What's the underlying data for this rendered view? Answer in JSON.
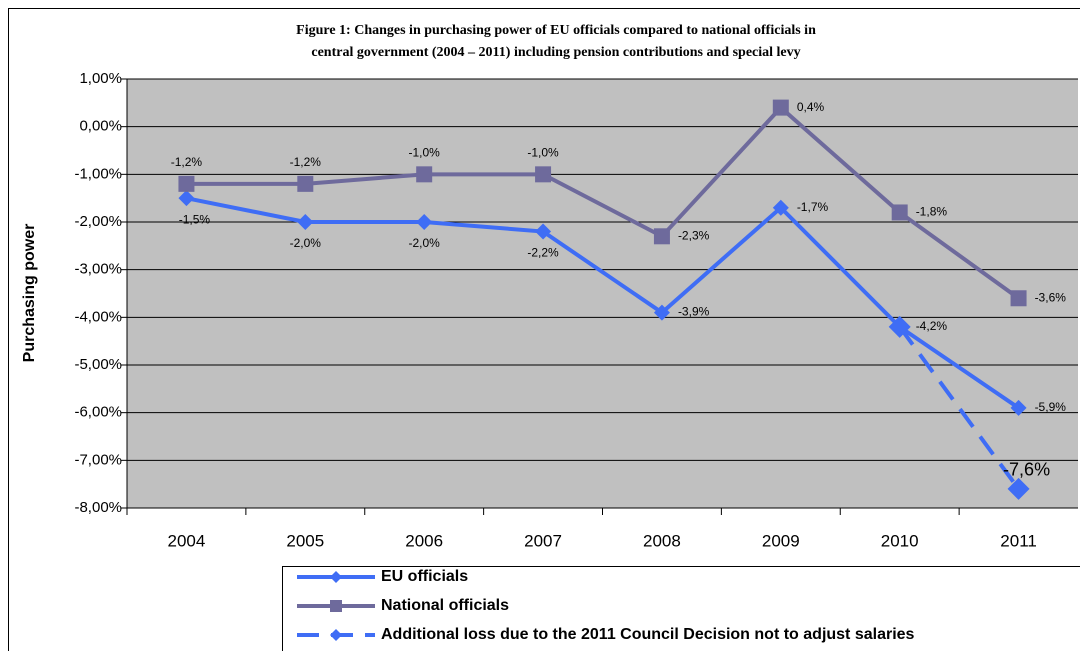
{
  "chart_data": {
    "type": "line",
    "title": [
      "Figure 1: Changes in purchasing power of EU officials compared to national officials in",
      "central government (2004 – 2011) including pension contributions and special levy"
    ],
    "y_label": "Purchasing power",
    "categories": [
      "2004",
      "2005",
      "2006",
      "2007",
      "2008",
      "2009",
      "2010",
      "2011"
    ],
    "ylim": [
      -8,
      1
    ],
    "yticks": [
      {
        "value": 1,
        "label": "1,00%"
      },
      {
        "value": 0,
        "label": "0,00%"
      },
      {
        "value": -1,
        "label": "-1,00%"
      },
      {
        "value": -2,
        "label": "-2,00%"
      },
      {
        "value": -3,
        "label": "-3,00%"
      },
      {
        "value": -4,
        "label": "-4,00%"
      },
      {
        "value": -5,
        "label": "-5,00%"
      },
      {
        "value": -6,
        "label": "-6,00%"
      },
      {
        "value": -7,
        "label": "-7,00%"
      },
      {
        "value": -8,
        "label": "-8,00%"
      }
    ],
    "grid": true,
    "series": [
      {
        "name": "EU officials",
        "color": "#3f6df5",
        "marker": "diamond",
        "values": [
          -1.5,
          -2.0,
          -2.0,
          -2.2,
          -3.9,
          -1.7,
          -4.2,
          -5.9
        ],
        "value_labels": [
          "-1,5%",
          "-2,0%",
          "-2,0%",
          "-2,2%",
          "-3,9%",
          "-1,7%",
          "-4,2%",
          "-5,9%"
        ]
      },
      {
        "name": "National officials",
        "color": "#6e6a9c",
        "marker": "square",
        "values": [
          -1.2,
          -1.2,
          -1.0,
          -1.0,
          -2.3,
          0.4,
          -1.8,
          -3.6
        ],
        "value_labels": [
          "-1,2%",
          "-1,2%",
          "-1,0%",
          "-1,0%",
          "-2,3%",
          "0,4%",
          "-1,8%",
          "-3,6%"
        ]
      },
      {
        "name": "Additional loss due to the 2011 Council Decision not to adjust salaries",
        "color": "#3f6df5",
        "marker": "diamond",
        "dashed": true,
        "values": [
          null,
          null,
          null,
          null,
          null,
          null,
          -4.2,
          -7.6
        ],
        "value_labels": [
          null,
          null,
          null,
          null,
          null,
          null,
          null,
          "-7,6%"
        ]
      }
    ]
  }
}
